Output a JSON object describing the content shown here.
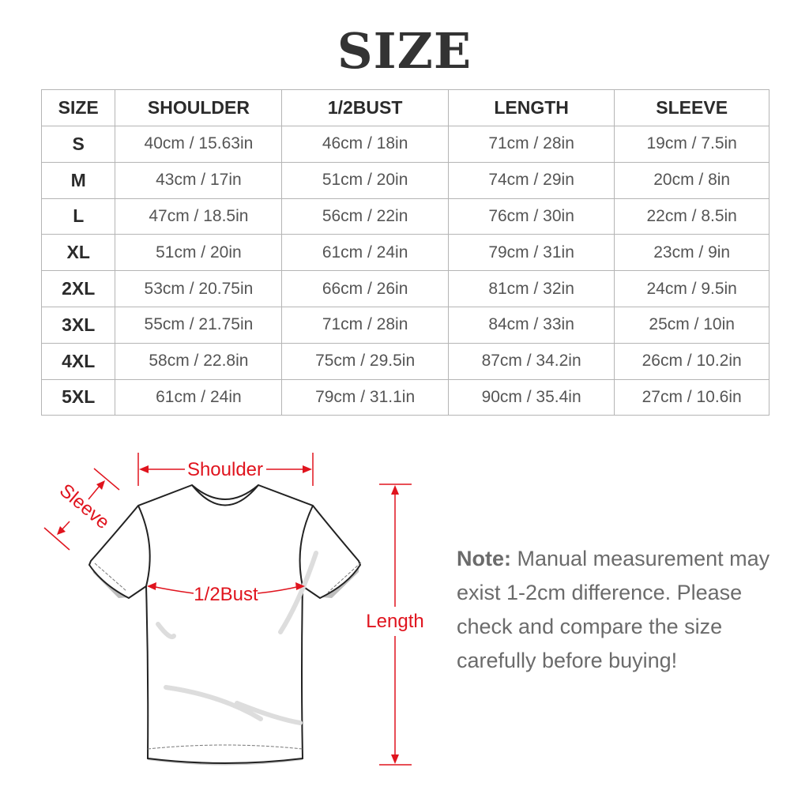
{
  "title": "SIZE",
  "table": {
    "headers": [
      "SIZE",
      "SHOULDER",
      "1/2BUST",
      "LENGTH",
      "SLEEVE"
    ],
    "rows": [
      [
        "S",
        "40cm / 15.63in",
        "46cm / 18in",
        "71cm / 28in",
        "19cm / 7.5in"
      ],
      [
        "M",
        "43cm / 17in",
        "51cm / 20in",
        "74cm / 29in",
        "20cm / 8in"
      ],
      [
        "L",
        "47cm / 18.5in",
        "56cm / 22in",
        "76cm / 30in",
        "22cm / 8.5in"
      ],
      [
        "XL",
        "51cm / 20in",
        "61cm / 24in",
        "79cm / 31in",
        "23cm / 9in"
      ],
      [
        "2XL",
        "53cm / 20.75in",
        "66cm / 26in",
        "81cm / 32in",
        "24cm / 9.5in"
      ],
      [
        "3XL",
        "55cm / 21.75in",
        "71cm / 28in",
        "84cm / 33in",
        "25cm / 10in"
      ],
      [
        "4XL",
        "58cm / 22.8in",
        "75cm / 29.5in",
        "87cm / 34.2in",
        "26cm / 10.2in"
      ],
      [
        "5XL",
        "61cm / 24in",
        "79cm / 31.1in",
        "90cm / 35.4in",
        "27cm / 10.6in"
      ]
    ]
  },
  "diagram": {
    "shoulder": "Shoulder",
    "sleeve": "Sleeve",
    "bust": "1/2Bust",
    "length": "Length",
    "accent": "#e0141e"
  },
  "note": {
    "label": "Note:",
    "text": "Manual measurement may exist 1-2cm difference. Please check and compare the size carefully before buying!"
  }
}
